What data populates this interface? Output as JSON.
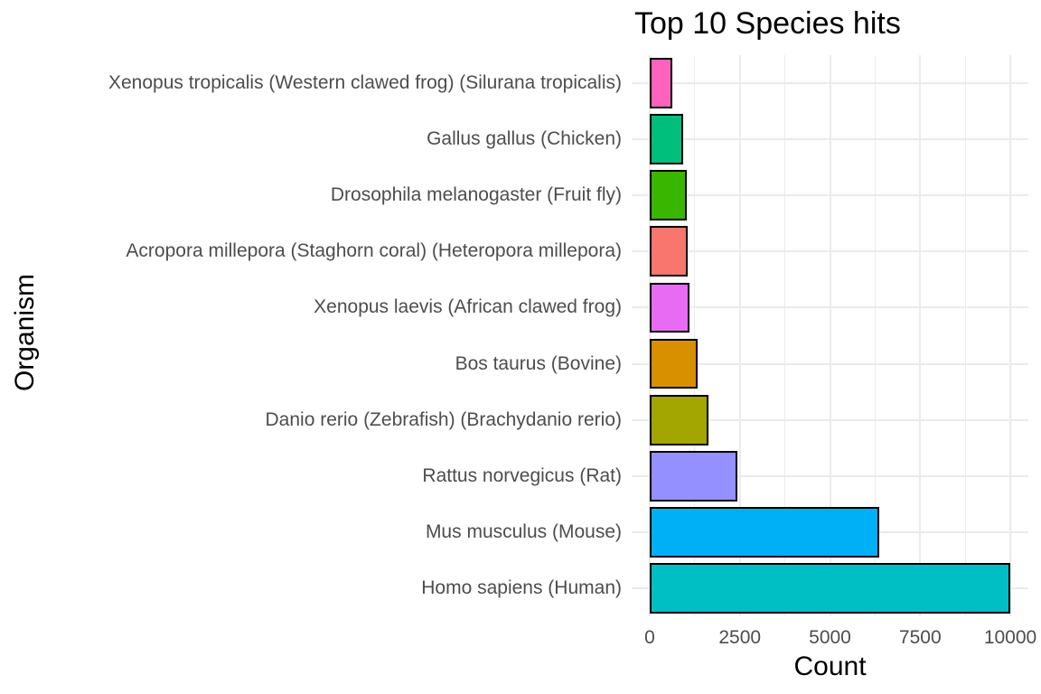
{
  "chart_data": {
    "type": "bar",
    "orientation": "horizontal",
    "title": "Top 10 Species hits",
    "xlabel": "Count",
    "ylabel": "Organism",
    "categories": [
      "Xenopus tropicalis (Western clawed frog) (Silurana tropicalis)",
      "Gallus gallus (Chicken)",
      "Drosophila melanogaster (Fruit fly)",
      "Acropora millepora (Staghorn coral) (Heteropora millepora)",
      "Xenopus laevis (African clawed frog)",
      "Bos taurus (Bovine)",
      "Danio rerio (Zebrafish) (Brachydanio rerio)",
      "Rattus norvegicus (Rat)",
      "Mus musculus (Mouse)",
      "Homo sapiens (Human)"
    ],
    "values": [
      640,
      930,
      1020,
      1060,
      1100,
      1330,
      1640,
      2440,
      6370,
      10000
    ],
    "bar_colors": [
      "#FF62BC",
      "#00BF7D",
      "#39B600",
      "#F8766D",
      "#E76BF3",
      "#D89000",
      "#A3A500",
      "#9590FF",
      "#00B0F6",
      "#00BFC4"
    ],
    "bar_border_color": "#000000",
    "x_ticks": [
      0,
      2500,
      5000,
      7500,
      10000
    ],
    "x_minor_ticks": [
      1250,
      3750,
      6250,
      8750
    ],
    "xlim": [
      -500,
      10500
    ],
    "grid": "on",
    "legend": "none",
    "gridline_color": "#ebebeb",
    "background_color": "#ffffff",
    "tick_text_color": "#4d4d4d",
    "title_color": "#000000"
  }
}
